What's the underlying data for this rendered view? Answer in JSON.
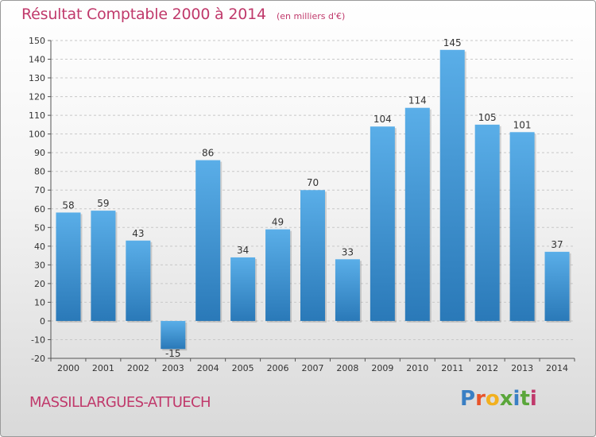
{
  "title": "Résultat Comptable 2000 à 2014",
  "subtitle": "(en milliers d'€)",
  "town": "MASSILLARGUES-ATTUECH",
  "logo": {
    "text": "Proxiti",
    "colors": [
      "#3a7fc4",
      "#e8542a",
      "#f2b01e",
      "#5aa63a",
      "#3a7fc4",
      "#5aa63a",
      "#c0396b"
    ]
  },
  "colors": {
    "accent": "#c0396b",
    "bar_top": "#5aaee8",
    "bar_bottom": "#2a79b8"
  },
  "chart_data": {
    "type": "bar",
    "title": "Résultat Comptable 2000 à 2014",
    "subtitle": "(en milliers d'€)",
    "categories": [
      "2000",
      "2001",
      "2002",
      "2003",
      "2004",
      "2005",
      "2006",
      "2007",
      "2008",
      "2009",
      "2010",
      "2011",
      "2012",
      "2013",
      "2014"
    ],
    "values": [
      58,
      59,
      43,
      -15,
      86,
      34,
      49,
      70,
      33,
      104,
      114,
      145,
      105,
      101,
      37
    ],
    "ylim": [
      -20,
      150
    ],
    "yticks": [
      -20,
      -10,
      0,
      10,
      20,
      30,
      40,
      50,
      60,
      70,
      80,
      90,
      100,
      110,
      120,
      130,
      140,
      150
    ],
    "grid": true
  }
}
